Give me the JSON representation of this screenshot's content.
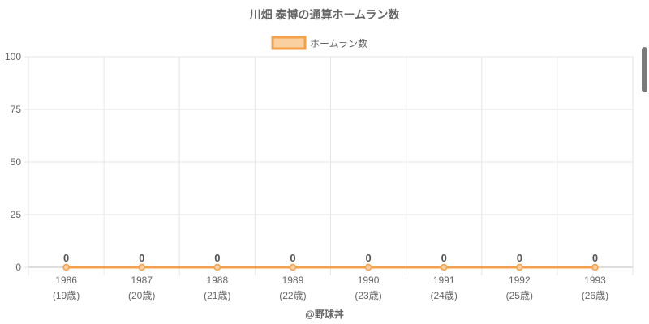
{
  "chart_data": {
    "type": "line",
    "title": "川畑 泰博の通算ホームラン数",
    "legend": {
      "label": "ホームラン数",
      "position": "top-center"
    },
    "categories": [
      "1986",
      "1987",
      "1988",
      "1989",
      "1990",
      "1991",
      "1992",
      "1993"
    ],
    "category_sublabels": [
      "(19歳)",
      "(20歳)",
      "(21歳)",
      "(22歳)",
      "(23歳)",
      "(24歳)",
      "(25歳)",
      "(26歳)"
    ],
    "series": [
      {
        "name": "ホームラン数",
        "values": [
          0,
          0,
          0,
          0,
          0,
          0,
          0,
          0
        ],
        "color": "#f5a04a"
      }
    ],
    "ylim": [
      0,
      100
    ],
    "yticks": [
      0,
      25,
      50,
      75,
      100
    ],
    "grid": true,
    "data_labels": true,
    "credit": "@野球丼"
  },
  "colors": {
    "series": "#f5a04a",
    "legend_fill": "#fbd0a0",
    "grid": "#e6e6e6",
    "axis": "#bdbdbd",
    "text": "#666666",
    "title_text": "#666666",
    "label_text": "#555555"
  },
  "scrollbar": {
    "visible": true
  }
}
